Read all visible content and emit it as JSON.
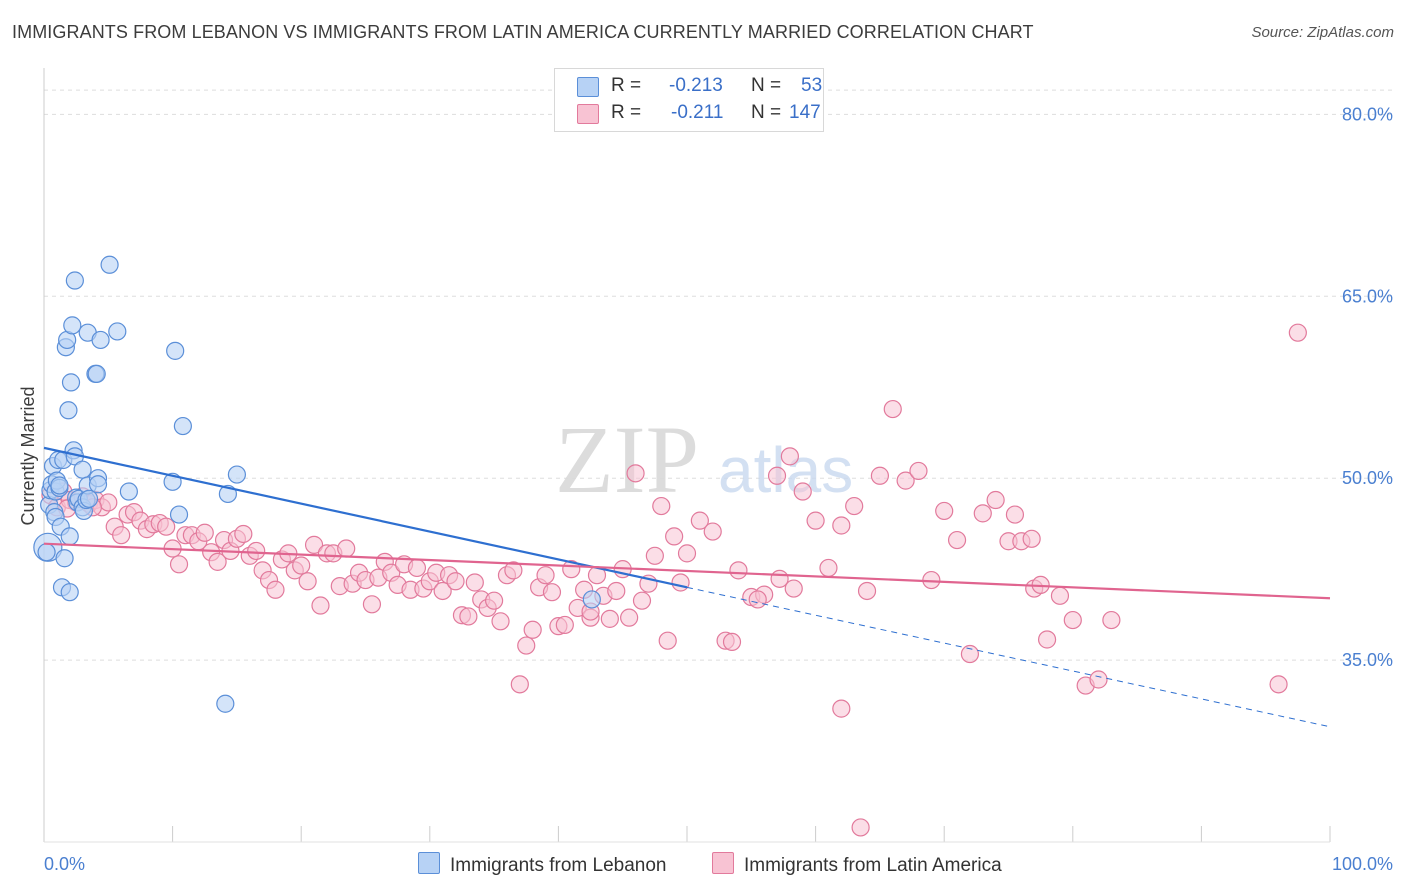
{
  "title": "IMMIGRANTS FROM LEBANON VS IMMIGRANTS FROM LATIN AMERICA CURRENTLY MARRIED CORRELATION CHART",
  "source": "Source: ZipAtlas.com",
  "watermark": {
    "zip": "ZIP",
    "atlas": "atlas"
  },
  "legend": {
    "r_label": "R =",
    "n_label": "N =",
    "series": [
      {
        "name": "Immigrants from Lebanon",
        "r": "-0.213",
        "n": "53",
        "fill": "#b7d2f5",
        "stroke": "#5b8fd8"
      },
      {
        "name": "Immigrants from Latin America",
        "r": "-0.211",
        "n": "147",
        "fill": "#f8c3d3",
        "stroke": "#e27a9c"
      }
    ]
  },
  "colors": {
    "blue_line": "#2e6fd0",
    "pink_line": "#e0648f",
    "axis_text": "#4a7fd0",
    "grid": "#dddddd"
  },
  "chart_data": {
    "type": "scatter",
    "title": "IMMIGRANTS FROM LEBANON VS IMMIGRANTS FROM LATIN AMERICA CURRENTLY MARRIED CORRELATION CHART",
    "xlabel": "",
    "ylabel": "Currently Married",
    "x_tick_labels": [
      "0.0%",
      "100.0%"
    ],
    "y_tick_labels": [
      "35.0%",
      "50.0%",
      "65.0%",
      "80.0%"
    ],
    "y_ticks": [
      35,
      50,
      65,
      80
    ],
    "xlim": [
      0,
      100
    ],
    "ylim": [
      20,
      83
    ],
    "grid": true,
    "legend_position": "top-center",
    "series": [
      {
        "name": "Immigrants from Lebanon",
        "color": "#5b8fd8",
        "trend": {
          "x0": 0,
          "y0": 52.5,
          "x1": 50,
          "y1": 41.0,
          "dashed_to_x": 100,
          "dashed_to_y": 29.5
        },
        "points": [
          [
            0.3,
            44.3
          ],
          [
            0.4,
            47.8
          ],
          [
            0.5,
            49.0
          ],
          [
            0.6,
            49.5
          ],
          [
            0.7,
            51.0
          ],
          [
            0.8,
            47.2
          ],
          [
            0.9,
            46.8
          ],
          [
            0.9,
            48.9
          ],
          [
            1.0,
            49.8
          ],
          [
            1.1,
            51.5
          ],
          [
            1.2,
            49.2
          ],
          [
            1.3,
            46.0
          ],
          [
            1.4,
            41.0
          ],
          [
            1.5,
            51.5
          ],
          [
            1.6,
            43.4
          ],
          [
            1.7,
            60.8
          ],
          [
            1.8,
            61.4
          ],
          [
            1.9,
            55.6
          ],
          [
            2.0,
            45.2
          ],
          [
            2.0,
            40.6
          ],
          [
            2.1,
            57.9
          ],
          [
            2.2,
            62.6
          ],
          [
            2.3,
            52.3
          ],
          [
            2.4,
            51.8
          ],
          [
            2.4,
            66.3
          ],
          [
            2.5,
            48.4
          ],
          [
            2.6,
            48.0
          ],
          [
            2.7,
            48.3
          ],
          [
            3.0,
            47.6
          ],
          [
            3.0,
            50.7
          ],
          [
            3.1,
            47.3
          ],
          [
            3.3,
            48.2
          ],
          [
            3.4,
            62.0
          ],
          [
            3.4,
            49.4
          ],
          [
            3.5,
            48.3
          ],
          [
            4.0,
            58.6
          ],
          [
            4.1,
            58.6
          ],
          [
            4.2,
            50.0
          ],
          [
            4.2,
            49.5
          ],
          [
            4.4,
            61.4
          ],
          [
            5.1,
            67.6
          ],
          [
            5.7,
            62.1
          ],
          [
            6.6,
            48.9
          ],
          [
            10.0,
            49.7
          ],
          [
            10.2,
            60.5
          ],
          [
            10.5,
            47.0
          ],
          [
            10.8,
            54.3
          ],
          [
            14.1,
            31.4
          ],
          [
            14.3,
            48.7
          ],
          [
            15.0,
            50.3
          ],
          [
            42.6,
            40.0
          ],
          [
            0.2,
            43.9
          ],
          [
            1.2,
            49.4
          ]
        ]
      },
      {
        "name": "Immigrants from Latin America",
        "color": "#e27a9c",
        "trend": {
          "x0": 0,
          "y0": 44.6,
          "x1": 100,
          "y1": 40.1
        },
        "points": [
          [
            0.5,
            48.6
          ],
          [
            1.0,
            47.6
          ],
          [
            1.5,
            48.9
          ],
          [
            2.0,
            48.2
          ],
          [
            2.5,
            48.0
          ],
          [
            3.0,
            48.5
          ],
          [
            3.5,
            47.9
          ],
          [
            4.0,
            48.2
          ],
          [
            4.5,
            47.6
          ],
          [
            5.0,
            48.0
          ],
          [
            5.5,
            46.0
          ],
          [
            6.0,
            45.3
          ],
          [
            6.5,
            47.0
          ],
          [
            7.0,
            47.2
          ],
          [
            7.5,
            46.5
          ],
          [
            8.0,
            45.8
          ],
          [
            8.5,
            46.2
          ],
          [
            9.0,
            46.3
          ],
          [
            9.5,
            46.0
          ],
          [
            10.0,
            44.2
          ],
          [
            10.5,
            42.9
          ],
          [
            11.0,
            45.3
          ],
          [
            11.5,
            45.3
          ],
          [
            12.0,
            44.8
          ],
          [
            12.5,
            45.5
          ],
          [
            13.0,
            43.9
          ],
          [
            13.5,
            43.1
          ],
          [
            14.0,
            44.9
          ],
          [
            14.5,
            44.0
          ],
          [
            15.0,
            45.0
          ],
          [
            15.5,
            45.4
          ],
          [
            16.0,
            43.6
          ],
          [
            16.5,
            44.0
          ],
          [
            17.0,
            42.4
          ],
          [
            17.5,
            41.6
          ],
          [
            18.0,
            40.8
          ],
          [
            18.5,
            43.3
          ],
          [
            19.0,
            43.8
          ],
          [
            19.5,
            42.4
          ],
          [
            20.0,
            42.8
          ],
          [
            20.5,
            41.5
          ],
          [
            21.0,
            44.5
          ],
          [
            21.5,
            39.5
          ],
          [
            22.0,
            43.8
          ],
          [
            22.5,
            43.8
          ],
          [
            23.0,
            41.1
          ],
          [
            23.5,
            44.2
          ],
          [
            24.0,
            41.3
          ],
          [
            24.5,
            42.2
          ],
          [
            25.0,
            41.6
          ],
          [
            25.5,
            39.6
          ],
          [
            26.0,
            41.8
          ],
          [
            26.5,
            43.1
          ],
          [
            27.0,
            42.2
          ],
          [
            27.5,
            41.2
          ],
          [
            28.0,
            42.9
          ],
          [
            28.5,
            40.8
          ],
          [
            29.0,
            42.6
          ],
          [
            29.5,
            40.9
          ],
          [
            30.0,
            41.5
          ],
          [
            30.5,
            42.2
          ],
          [
            31.0,
            40.7
          ],
          [
            31.5,
            42.0
          ],
          [
            32.0,
            41.5
          ],
          [
            32.5,
            38.7
          ],
          [
            33.0,
            38.6
          ],
          [
            33.5,
            41.4
          ],
          [
            34.0,
            40.0
          ],
          [
            34.5,
            39.3
          ],
          [
            35.0,
            39.9
          ],
          [
            35.5,
            38.2
          ],
          [
            36.0,
            42.0
          ],
          [
            36.5,
            42.4
          ],
          [
            37.0,
            33.0
          ],
          [
            37.5,
            36.2
          ],
          [
            38.0,
            37.5
          ],
          [
            38.5,
            41.0
          ],
          [
            39.0,
            42.0
          ],
          [
            39.5,
            40.6
          ],
          [
            40.0,
            37.8
          ],
          [
            40.5,
            37.9
          ],
          [
            41.0,
            42.5
          ],
          [
            41.5,
            39.3
          ],
          [
            42.0,
            40.8
          ],
          [
            42.5,
            38.5
          ],
          [
            43.0,
            42.0
          ],
          [
            43.5,
            40.3
          ],
          [
            44.0,
            38.4
          ],
          [
            44.5,
            40.7
          ],
          [
            45.0,
            42.5
          ],
          [
            45.5,
            38.5
          ],
          [
            46.0,
            50.4
          ],
          [
            46.5,
            39.9
          ],
          [
            47.0,
            41.3
          ],
          [
            47.5,
            43.6
          ],
          [
            48.0,
            47.7
          ],
          [
            48.5,
            36.6
          ],
          [
            49.0,
            45.2
          ],
          [
            49.5,
            41.4
          ],
          [
            50.0,
            43.8
          ],
          [
            51.0,
            46.5
          ],
          [
            52.0,
            45.6
          ],
          [
            53.0,
            36.6
          ],
          [
            54.0,
            42.4
          ],
          [
            55.0,
            40.2
          ],
          [
            56.0,
            40.4
          ],
          [
            57.0,
            50.2
          ],
          [
            58.0,
            51.8
          ],
          [
            59.0,
            48.9
          ],
          [
            60.0,
            46.5
          ],
          [
            61.0,
            42.6
          ],
          [
            62.0,
            46.1
          ],
          [
            63.0,
            47.7
          ],
          [
            64.0,
            40.7
          ],
          [
            65.0,
            50.2
          ],
          [
            66.0,
            55.7
          ],
          [
            67.0,
            49.8
          ],
          [
            68.0,
            50.6
          ],
          [
            69.0,
            41.6
          ],
          [
            70.0,
            47.3
          ],
          [
            71.0,
            44.9
          ],
          [
            72.0,
            35.5
          ],
          [
            73.0,
            47.1
          ],
          [
            74.0,
            48.2
          ],
          [
            75.0,
            44.8
          ],
          [
            76.0,
            44.8
          ],
          [
            77.0,
            40.9
          ],
          [
            78.0,
            36.7
          ],
          [
            79.0,
            40.3
          ],
          [
            80.0,
            38.3
          ],
          [
            81.0,
            32.9
          ],
          [
            82.0,
            33.4
          ],
          [
            83.0,
            38.3
          ],
          [
            57.2,
            41.7
          ],
          [
            62.0,
            31.0
          ],
          [
            63.5,
            21.2
          ],
          [
            53.5,
            36.5
          ],
          [
            55.5,
            40.0
          ],
          [
            42.5,
            39.0
          ],
          [
            58.3,
            40.9
          ],
          [
            75.5,
            47.0
          ],
          [
            76.8,
            45.0
          ],
          [
            77.5,
            41.2
          ],
          [
            96.0,
            33.0
          ],
          [
            97.5,
            62.0
          ],
          [
            1.8,
            47.5
          ],
          [
            3.8,
            47.6
          ]
        ]
      }
    ]
  }
}
